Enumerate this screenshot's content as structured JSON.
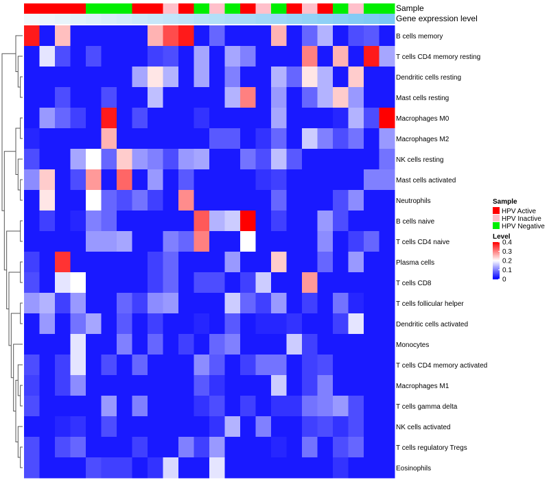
{
  "chart_data": {
    "type": "heatmap",
    "title": "",
    "annotation_labels": [
      "Sample",
      "Gene expression level"
    ],
    "rows": [
      "B cells memory",
      "T cells CD4 memory resting",
      "Dendritic cells resting",
      "Mast cells resting",
      "Macrophages M0",
      "Macrophages M2",
      "NK cells resting",
      "Mast cells activated",
      "Neutrophils",
      "B cells naive",
      "T cells CD4 naive",
      "Plasma cells",
      "T cells CD8",
      "T cells follicular helper",
      "Dendritic cells activated",
      "Monocytes",
      "T cells CD4 memory activated",
      "Macrophages M1",
      "T cells gamma delta",
      "NK cells activated",
      "T cells regulatory  Tregs",
      "Eosinophils"
    ],
    "column_samples": [
      "HPV Active",
      "HPV Active",
      "HPV Active",
      "HPV Active",
      "HPV Negative",
      "HPV Negative",
      "HPV Negative",
      "HPV Active",
      "HPV Active",
      "HPV Inactive",
      "HPV Active",
      "HPV Negative",
      "HPV Inactive",
      "HPV Negative",
      "HPV Active",
      "HPV Inactive",
      "HPV Negative",
      "HPV Active",
      "HPV Inactive",
      "HPV Active",
      "HPV Negative",
      "HPV Inactive",
      "HPV Negative",
      "HPV Negative"
    ],
    "column_gene_expression": [
      0.0,
      0.04,
      0.08,
      0.12,
      0.16,
      0.2,
      0.24,
      0.28,
      0.32,
      0.36,
      0.4,
      0.44,
      0.48,
      0.52,
      0.56,
      0.6,
      0.64,
      0.68,
      0.72,
      0.76,
      0.8,
      0.84,
      0.88,
      0.92
    ],
    "values": [
      [
        0.38,
        0.02,
        0.25,
        0.02,
        0.02,
        0.02,
        0.02,
        0.02,
        0.26,
        0.34,
        0.38,
        0.02,
        0.08,
        0.02,
        0.02,
        0.02,
        0.26,
        0.02,
        0.08,
        0.14,
        0.02,
        0.06,
        0.07,
        0.02
      ],
      [
        0.02,
        0.18,
        0.06,
        0.02,
        0.06,
        0.02,
        0.02,
        0.02,
        0.05,
        0.06,
        0.02,
        0.13,
        0.02,
        0.13,
        0.1,
        0.02,
        0.02,
        0.02,
        0.3,
        0.02,
        0.26,
        0.02,
        0.38,
        0.13
      ],
      [
        0.02,
        0.02,
        0.02,
        0.02,
        0.02,
        0.02,
        0.02,
        0.13,
        0.22,
        0.14,
        0.02,
        0.13,
        0.02,
        0.1,
        0.02,
        0.02,
        0.14,
        0.08,
        0.22,
        0.14,
        0.02,
        0.24,
        0.02,
        0.02
      ],
      [
        0.02,
        0.02,
        0.06,
        0.02,
        0.02,
        0.06,
        0.02,
        0.02,
        0.15,
        0.02,
        0.02,
        0.02,
        0.02,
        0.14,
        0.3,
        0.02,
        0.12,
        0.02,
        0.08,
        0.14,
        0.24,
        0.12,
        0.02,
        0.02
      ],
      [
        0.02,
        0.12,
        0.08,
        0.05,
        0.02,
        0.38,
        0.02,
        0.06,
        0.02,
        0.02,
        0.02,
        0.04,
        0.02,
        0.02,
        0.02,
        0.02,
        0.13,
        0.02,
        0.02,
        0.02,
        0.03,
        0.14,
        0.06,
        0.4
      ],
      [
        0.03,
        0.02,
        0.02,
        0.02,
        0.02,
        0.26,
        0.02,
        0.02,
        0.02,
        0.02,
        0.02,
        0.02,
        0.07,
        0.07,
        0.02,
        0.04,
        0.08,
        0.02,
        0.16,
        0.1,
        0.06,
        0.09,
        0.02,
        0.12
      ],
      [
        0.06,
        0.02,
        0.02,
        0.13,
        0.2,
        0.08,
        0.24,
        0.12,
        0.1,
        0.06,
        0.12,
        0.13,
        0.02,
        0.02,
        0.09,
        0.06,
        0.15,
        0.07,
        0.02,
        0.02,
        0.02,
        0.02,
        0.02,
        0.09
      ],
      [
        0.11,
        0.24,
        0.02,
        0.06,
        0.28,
        0.02,
        0.32,
        0.02,
        0.12,
        0.02,
        0.07,
        0.02,
        0.02,
        0.02,
        0.02,
        0.04,
        0.05,
        0.02,
        0.02,
        0.02,
        0.02,
        0.02,
        0.1,
        0.1
      ],
      [
        0.02,
        0.22,
        0.02,
        0.02,
        0.2,
        0.08,
        0.06,
        0.09,
        0.05,
        0.02,
        0.29,
        0.02,
        0.02,
        0.02,
        0.02,
        0.02,
        0.08,
        0.02,
        0.02,
        0.02,
        0.06,
        0.11,
        0.02,
        0.02
      ],
      [
        0.02,
        0.05,
        0.02,
        0.03,
        0.1,
        0.08,
        0.02,
        0.02,
        0.02,
        0.02,
        0.02,
        0.33,
        0.14,
        0.16,
        0.4,
        0.02,
        0.05,
        0.02,
        0.02,
        0.12,
        0.06,
        0.02,
        0.02,
        0.02
      ],
      [
        0.02,
        0.02,
        0.02,
        0.02,
        0.12,
        0.12,
        0.13,
        0.02,
        0.02,
        0.1,
        0.08,
        0.3,
        0.02,
        0.02,
        0.2,
        0.02,
        0.02,
        0.02,
        0.02,
        0.11,
        0.02,
        0.05,
        0.08,
        0.02
      ],
      [
        0.05,
        0.02,
        0.36,
        0.02,
        0.02,
        0.02,
        0.02,
        0.02,
        0.05,
        0.08,
        0.02,
        0.02,
        0.02,
        0.12,
        0.02,
        0.02,
        0.24,
        0.02,
        0.02,
        0.08,
        0.02,
        0.12,
        0.02,
        0.02
      ],
      [
        0.06,
        0.02,
        0.18,
        0.2,
        0.02,
        0.02,
        0.02,
        0.02,
        0.05,
        0.08,
        0.02,
        0.06,
        0.06,
        0.02,
        0.05,
        0.16,
        0.02,
        0.02,
        0.28,
        0.02,
        0.02,
        0.02,
        0.02,
        0.02
      ],
      [
        0.12,
        0.14,
        0.05,
        0.12,
        0.02,
        0.02,
        0.08,
        0.05,
        0.11,
        0.12,
        0.02,
        0.02,
        0.02,
        0.16,
        0.08,
        0.05,
        0.12,
        0.02,
        0.05,
        0.02,
        0.09,
        0.03,
        0.02,
        0.02
      ],
      [
        0.02,
        0.12,
        0.02,
        0.09,
        0.13,
        0.02,
        0.07,
        0.02,
        0.05,
        0.02,
        0.02,
        0.03,
        0.02,
        0.07,
        0.02,
        0.03,
        0.03,
        0.04,
        0.02,
        0.02,
        0.05,
        0.18,
        0.02,
        0.02
      ],
      [
        0.02,
        0.02,
        0.02,
        0.18,
        0.02,
        0.02,
        0.1,
        0.02,
        0.08,
        0.02,
        0.05,
        0.02,
        0.08,
        0.1,
        0.02,
        0.02,
        0.02,
        0.16,
        0.05,
        0.02,
        0.02,
        0.02,
        0.02,
        0.02
      ],
      [
        0.06,
        0.02,
        0.05,
        0.18,
        0.02,
        0.06,
        0.02,
        0.08,
        0.02,
        0.02,
        0.02,
        0.11,
        0.07,
        0.02,
        0.05,
        0.09,
        0.09,
        0.02,
        0.05,
        0.06,
        0.02,
        0.02,
        0.02,
        0.02
      ],
      [
        0.05,
        0.02,
        0.05,
        0.11,
        0.02,
        0.02,
        0.02,
        0.02,
        0.02,
        0.02,
        0.02,
        0.07,
        0.04,
        0.02,
        0.02,
        0.02,
        0.16,
        0.02,
        0.05,
        0.1,
        0.02,
        0.02,
        0.02,
        0.02
      ],
      [
        0.06,
        0.02,
        0.02,
        0.02,
        0.02,
        0.12,
        0.02,
        0.1,
        0.02,
        0.02,
        0.02,
        0.04,
        0.06,
        0.02,
        0.05,
        0.02,
        0.04,
        0.04,
        0.09,
        0.1,
        0.12,
        0.06,
        0.02,
        0.02
      ],
      [
        0.02,
        0.02,
        0.03,
        0.04,
        0.02,
        0.06,
        0.02,
        0.02,
        0.02,
        0.02,
        0.02,
        0.02,
        0.04,
        0.14,
        0.02,
        0.1,
        0.02,
        0.02,
        0.05,
        0.06,
        0.04,
        0.06,
        0.02,
        0.02
      ],
      [
        0.06,
        0.02,
        0.06,
        0.08,
        0.02,
        0.02,
        0.02,
        0.05,
        0.02,
        0.02,
        0.1,
        0.05,
        0.12,
        0.02,
        0.02,
        0.02,
        0.03,
        0.02,
        0.09,
        0.02,
        0.06,
        0.08,
        0.02,
        0.02
      ],
      [
        0.06,
        0.02,
        0.02,
        0.02,
        0.06,
        0.05,
        0.05,
        0.02,
        0.04,
        0.17,
        0.02,
        0.02,
        0.18,
        0.02,
        0.02,
        0.02,
        0.02,
        0.02,
        0.02,
        0.02,
        0.04,
        0.02,
        0.02,
        0.02
      ]
    ],
    "color_scale": {
      "min": 0,
      "max": 0.4,
      "low": "#0000ff",
      "mid": "#ffffff",
      "high": "#ff0000",
      "mid_value": 0.2
    },
    "legend_sample": {
      "title": "Sample",
      "entries": [
        {
          "label": "HPV Active",
          "color": "#ff0000"
        },
        {
          "label": "HPV Inactive",
          "color": "#ffc0cb"
        },
        {
          "label": "HPV Negative",
          "color": "#00ee00"
        }
      ]
    },
    "legend_level": {
      "title": "Level",
      "ticks": [
        "0.4",
        "0.3",
        "0.2",
        "0.1",
        "0"
      ],
      "tick_values": [
        0.4,
        0.3,
        0.2,
        0.1,
        0
      ]
    },
    "gene_expression_colors": {
      "low": "#f2f8fc",
      "high": "#6fc3f4"
    }
  }
}
